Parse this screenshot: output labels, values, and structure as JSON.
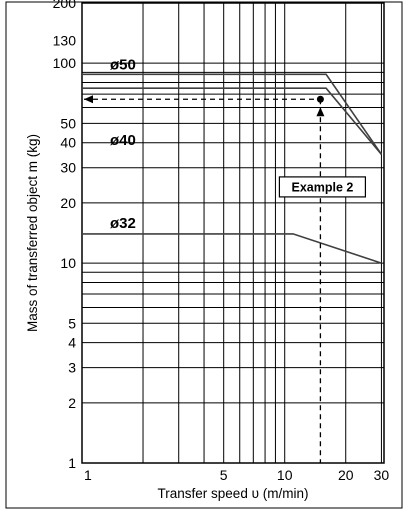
{
  "chart_data": {
    "type": "line",
    "xlabel": "Transfer speed υ (m/min)",
    "ylabel": "Mass of transferred object m (kg)",
    "xscale": "log",
    "yscale": "log",
    "xlim": [
      1,
      35
    ],
    "ylim": [
      1,
      200
    ],
    "grid": true,
    "x_tick_labels": [
      {
        "value": 1,
        "label": "1"
      },
      {
        "value": 5,
        "label": "5"
      },
      {
        "value": 10,
        "label": "10"
      },
      {
        "value": 20,
        "label": "20"
      },
      {
        "value": 30,
        "label": "30"
      }
    ],
    "y_tick_labels": [
      {
        "value": 1,
        "label": "1"
      },
      {
        "value": 2,
        "label": "2"
      },
      {
        "value": 3,
        "label": "3"
      },
      {
        "value": 4,
        "label": "4"
      },
      {
        "value": 5,
        "label": "5"
      },
      {
        "value": 10,
        "label": "10"
      },
      {
        "value": 20,
        "label": "20"
      },
      {
        "value": 30,
        "label": "30"
      },
      {
        "value": 40,
        "label": "40"
      },
      {
        "value": 50,
        "label": "50"
      },
      {
        "value": 100,
        "label": "100"
      },
      {
        "value": 130,
        "label": "130"
      },
      {
        "value": 200,
        "label": "200"
      }
    ],
    "series": [
      {
        "name": "ø50",
        "x": [
          1,
          16,
          30
        ],
        "y": [
          88,
          88,
          35
        ]
      },
      {
        "name": "ø40",
        "x": [
          1,
          16,
          30
        ],
        "y": [
          75,
          75,
          35
        ]
      },
      {
        "name": "ø32",
        "x": [
          1,
          11,
          30
        ],
        "y": [
          14,
          14,
          10
        ]
      }
    ],
    "annotations": [
      {
        "text": "Example 2",
        "x": 15,
        "y": 66
      }
    ],
    "colors": {
      "lines": "#404040",
      "grid": "#000000",
      "dashed": "#000000"
    }
  }
}
